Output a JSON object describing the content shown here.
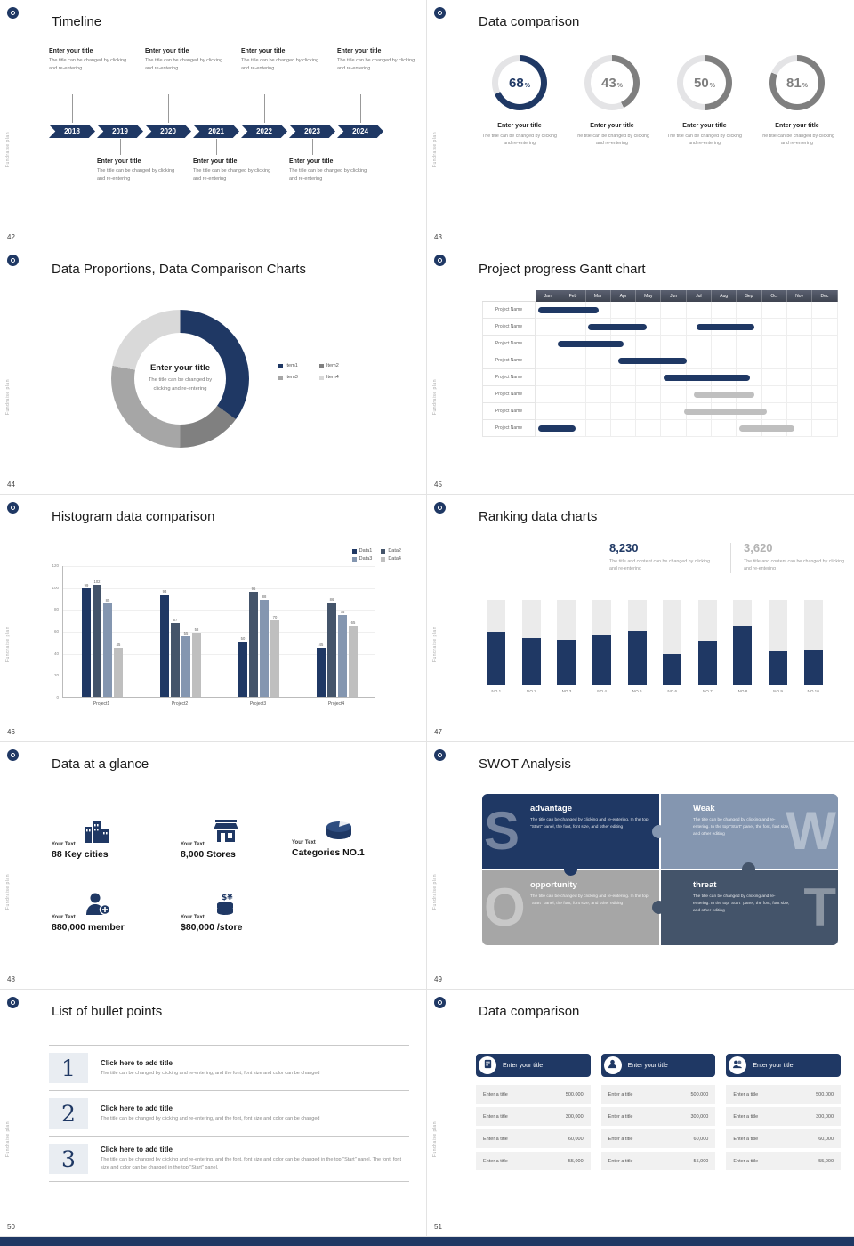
{
  "brand": "Fundraise plan",
  "colors": {
    "navy": "#1f3864",
    "slate": "#44546a",
    "blue_gray": "#8496b0",
    "gray": "#a6a6a6",
    "track": "#ebebeb"
  },
  "slides": {
    "timeline": {
      "page_no": "42",
      "title": "Timeline",
      "years": [
        "2018",
        "2019",
        "2020",
        "2021",
        "2022",
        "2023",
        "2024"
      ],
      "entries_top": [
        {
          "year_index": 0,
          "title": "Enter your title",
          "text": "The title can be changed by clicking and re-entering"
        },
        {
          "year_index": 2,
          "title": "Enter your title",
          "text": "The title can be changed by clicking and re-entering"
        },
        {
          "year_index": 4,
          "title": "Enter your title",
          "text": "The title can be changed by clicking and re-entering"
        },
        {
          "year_index": 6,
          "title": "Enter your title",
          "text": "The title can be changed by clicking and re-entering"
        }
      ],
      "entries_bottom": [
        {
          "year_index": 1,
          "title": "Enter your title",
          "text": "The title can be changed by clicking and re-entering"
        },
        {
          "year_index": 3,
          "title": "Enter your title",
          "text": "The title can be changed by clicking and re-entering"
        },
        {
          "year_index": 5,
          "title": "Enter your title",
          "text": "The title can be changed by clicking and re-entering"
        }
      ]
    },
    "data_comparison": {
      "page_no": "43",
      "title": "Data comparison",
      "percent_sign": "%",
      "rings": [
        {
          "percent": 68,
          "label": "Enter your title",
          "text": "The title can be changed by clicking and re-entering",
          "color": "#1f3864"
        },
        {
          "percent": 43,
          "label": "Enter your title",
          "text": "The title can be changed by clicking and re-entering",
          "color": "#7f7f7f"
        },
        {
          "percent": 50,
          "label": "Enter your title",
          "text": "The title can be changed by clicking and re-entering",
          "color": "#7f7f7f"
        },
        {
          "percent": 81,
          "label": "Enter your title",
          "text": "The title can be changed by clicking and re-entering",
          "color": "#7f7f7f"
        }
      ]
    },
    "donut": {
      "page_no": "44",
      "title": "Data Proportions, Data Comparison Charts",
      "center_title": "Enter your title",
      "center_text": "The title can be changed by clicking and re-entering",
      "chart_data": {
        "type": "pie"
      },
      "segments": [
        {
          "label": "Item1",
          "value": 35,
          "color": "#1f3864"
        },
        {
          "label": "Item2",
          "value": 15,
          "color": "#808080"
        },
        {
          "label": "Item3",
          "value": 28,
          "color": "#a6a6a6"
        },
        {
          "label": "Item4",
          "value": 22,
          "color": "#d9d9d9"
        }
      ]
    },
    "gantt": {
      "page_no": "45",
      "title": "Project progress Gantt chart",
      "months": [
        "Jan",
        "Feb",
        "Mar",
        "Apr",
        "May",
        "Jun",
        "Jul",
        "Aug",
        "Sep",
        "Oct",
        "Nov",
        "Dec"
      ],
      "row_label": "Project Name",
      "rows": 8,
      "bars": [
        {
          "row": 0,
          "start": 0.1,
          "len": 2.4,
          "color": "#1f3864"
        },
        {
          "row": 1,
          "start": 2.1,
          "len": 2.3,
          "color": "#1f3864"
        },
        {
          "row": 1,
          "start": 6.4,
          "len": 2.3,
          "color": "#1f3864"
        },
        {
          "row": 2,
          "start": 0.9,
          "len": 2.6,
          "color": "#1f3864"
        },
        {
          "row": 3,
          "start": 3.3,
          "len": 2.7,
          "color": "#1f3864"
        },
        {
          "row": 4,
          "start": 5.1,
          "len": 3.4,
          "color": "#1f3864"
        },
        {
          "row": 5,
          "start": 6.3,
          "len": 2.4,
          "color": "#bfbfbf"
        },
        {
          "row": 6,
          "start": 5.9,
          "len": 3.3,
          "color": "#bfbfbf"
        },
        {
          "row": 7,
          "start": 0.1,
          "len": 1.5,
          "color": "#1f3864"
        },
        {
          "row": 7,
          "start": 8.1,
          "len": 2.2,
          "color": "#bfbfbf"
        }
      ]
    },
    "histogram": {
      "page_no": "46",
      "title": "Histogram data comparison",
      "chart_data_type": "bar",
      "categories": [
        "Project1",
        "Project2",
        "Project3",
        "Project4"
      ],
      "series": [
        {
          "name": "Data1",
          "color": "#1f3864",
          "values": [
            99,
            93,
            50,
            45
          ]
        },
        {
          "name": "Data2",
          "color": "#44546a",
          "values": [
            102,
            67,
            96,
            86
          ]
        },
        {
          "name": "Data3",
          "color": "#8496b0",
          "values": [
            85,
            55,
            88,
            75
          ]
        },
        {
          "name": "Data4",
          "color": "#bfbfbf",
          "values": [
            45,
            58,
            70,
            65
          ]
        }
      ],
      "y_ticks": [
        120,
        100,
        80,
        60,
        40,
        20,
        0
      ],
      "y_max": 120
    },
    "ranking": {
      "page_no": "47",
      "title": "Ranking data charts",
      "stat1": {
        "value": "8,230",
        "text": "The title and content can be changed by clicking and re-entering",
        "color": "#1f3864"
      },
      "stat2": {
        "value": "3,620",
        "text": "The title and content can be changed by clicking and re-entering",
        "color": "#b3b3b3"
      },
      "bar_color": "#1f3864",
      "bars": [
        {
          "label": "NO.1",
          "value": 62
        },
        {
          "label": "NO.2",
          "value": 55
        },
        {
          "label": "NO.3",
          "value": 53
        },
        {
          "label": "NO.4",
          "value": 58
        },
        {
          "label": "NO.5",
          "value": 64
        },
        {
          "label": "NO.6",
          "value": 36
        },
        {
          "label": "NO.7",
          "value": 52
        },
        {
          "label": "NO.8",
          "value": 70
        },
        {
          "label": "NO.9",
          "value": 40
        },
        {
          "label": "NO.10",
          "value": 42
        }
      ]
    },
    "glance": {
      "page_no": "48",
      "title": "Data at a glance",
      "items": [
        {
          "icon": "city-icon",
          "label": "Your Text",
          "value": "88 Key cities"
        },
        {
          "icon": "store-icon",
          "label": "Your Text",
          "value": "8,000 Stores"
        },
        {
          "icon": "category-icon",
          "label": "Your Text",
          "value": "Categories NO.1"
        },
        {
          "icon": "member-icon",
          "label": "Your Text",
          "value": "880,000 member"
        },
        {
          "icon": "coins-icon",
          "label": "Your Text",
          "value": "$80,000 /store"
        }
      ]
    },
    "swot": {
      "page_no": "49",
      "title": "SWOT Analysis",
      "quads": [
        {
          "letter": "S",
          "label": "advantage",
          "text": "The title can be changed by clicking and re-entering. In the top \"Start\" panel, the font, font size, and other editing",
          "color": "#1f3864"
        },
        {
          "letter": "W",
          "label": "Weak",
          "text": "The title can be changed by clicking and re-entering. In the top \"Start\" panel, the font, font size, and other editing",
          "color": "#8496b0"
        },
        {
          "letter": "O",
          "label": "opportunity",
          "text": "The title can be changed by clicking and re-entering. In the top \"Start\" panel, the font, font size, and other editing",
          "color": "#a6a6a6"
        },
        {
          "letter": "T",
          "label": "threat",
          "text": "The title can be changed by clicking and re-entering. In the top \"Start\" panel, the font, font size, and other editing",
          "color": "#44546a"
        }
      ]
    },
    "bullets": {
      "page_no": "50",
      "title": "List of bullet points",
      "items": [
        {
          "num": "1",
          "label": "Click here to add title",
          "text": "The title can be changed by clicking and re-entering, and the font, font size and color can be changed"
        },
        {
          "num": "2",
          "label": "Click here to add title",
          "text": "The title can be changed by clicking and re-entering, and the font, font size and color can be changed"
        },
        {
          "num": "3",
          "label": "Click here to add title",
          "text": "The title can be changed by clicking and re-entering, and the font, font size and color can be changed in the top \"Start\" panel. The font, font size and color can be changed in the top \"Start\" panel."
        }
      ]
    },
    "compare_cards": {
      "page_no": "51",
      "title": "Data comparison",
      "cards": [
        {
          "icon": "report-icon",
          "header": "Enter your title",
          "rows": [
            [
              "Enter a title",
              "500,000"
            ],
            [
              "Enter a title",
              "300,000"
            ],
            [
              "Enter a title",
              "60,000"
            ],
            [
              "Enter a title",
              "55,000"
            ]
          ]
        },
        {
          "icon": "person-icon",
          "header": "Enter your title",
          "rows": [
            [
              "Enter a title",
              "500,000"
            ],
            [
              "Enter a title",
              "300,000"
            ],
            [
              "Enter a title",
              "60,000"
            ],
            [
              "Enter a title",
              "55,000"
            ]
          ]
        },
        {
          "icon": "people-icon",
          "header": "Enter your title",
          "rows": [
            [
              "Enter a title",
              "500,000"
            ],
            [
              "Enter a title",
              "300,000"
            ],
            [
              "Enter a title",
              "60,000"
            ],
            [
              "Enter a title",
              "55,000"
            ]
          ]
        }
      ]
    }
  }
}
